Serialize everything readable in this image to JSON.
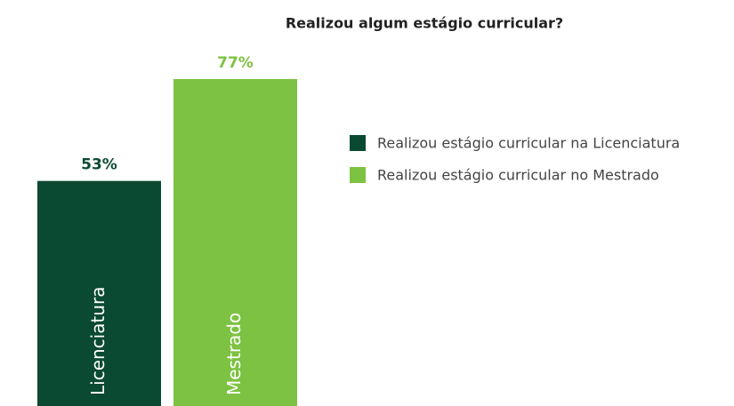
{
  "chart_data": {
    "type": "bar",
    "title": "Realizou algum estágio curricular?",
    "categories": [
      "Licenciatura",
      "Mestrado"
    ],
    "series": [
      {
        "name": "Realizou estágio curricular na Licenciatura",
        "color": "#0b4a32",
        "values": [
          53,
          null
        ],
        "value_labels": [
          "53%",
          null
        ]
      },
      {
        "name": "Realizou estágio curricular no Mestrado",
        "color": "#7dc242",
        "values": [
          null,
          77
        ],
        "value_labels": [
          null,
          "77%"
        ]
      }
    ]
  }
}
